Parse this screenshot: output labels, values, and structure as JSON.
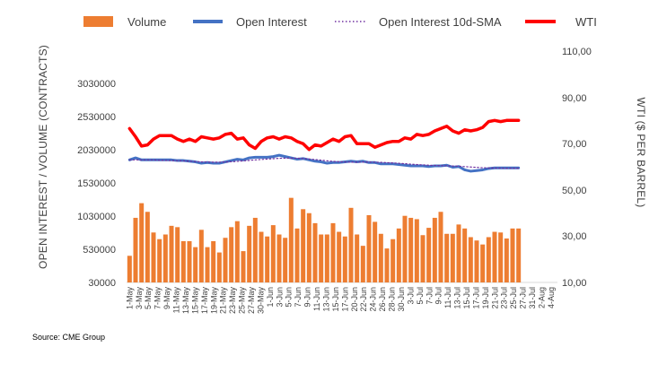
{
  "source": "Source: CME Group",
  "chart_data": {
    "type": "bar",
    "y_left_label": "OPEN INTEREST / VOLUME (CONTRACTS)",
    "y_right_label": "WTI ($ PER BARREL)",
    "y_left_ticks": [
      "30000",
      "530000",
      "1030000",
      "1530000",
      "2030000",
      "2530000",
      "3030000"
    ],
    "y_left_ylim": [
      30000,
      3530000
    ],
    "y_right_ticks": [
      "10,00",
      "30,00",
      "50,00",
      "70,00",
      "90,00",
      "110,00"
    ],
    "y_right_ylim": [
      10,
      110
    ],
    "x_tick_labels": [
      "1-May",
      "3-May",
      "5-May",
      "7-May",
      "9-May",
      "11-May",
      "13-May",
      "15-May",
      "17-May",
      "19-May",
      "21-May",
      "23-May",
      "25-May",
      "27-May",
      "30-May",
      "1-Jun",
      "3-Jun",
      "5-Jun",
      "7-Jun",
      "9-Jun",
      "11-Jun",
      "13-Jun",
      "15-Jun",
      "17-Jun",
      "20-Jun",
      "22-Jun",
      "24-Jun",
      "26-Jun",
      "28-Jun",
      "30-Jun",
      "3-Jul",
      "5-Jul",
      "7-Jul",
      "9-Jul",
      "11-Jul",
      "13-Jul",
      "15-Jul",
      "17-Jul",
      "19-Jul",
      "21-Jul",
      "23-Jul",
      "25-Jul",
      "27-Jul",
      "31-Jul",
      "2-Aug",
      "4-Aug"
    ],
    "n_points": 66,
    "n_slots": 72,
    "series": [
      {
        "name": "Volume",
        "kind": "bar",
        "color": "#ed7d31",
        "axis": "left",
        "values": [
          430000,
          1000000,
          1220000,
          1090000,
          780000,
          680000,
          750000,
          880000,
          860000,
          650000,
          650000,
          560000,
          820000,
          560000,
          650000,
          480000,
          700000,
          860000,
          950000,
          500000,
          880000,
          1000000,
          790000,
          720000,
          890000,
          750000,
          700000,
          1300000,
          840000,
          1130000,
          1070000,
          920000,
          750000,
          750000,
          920000,
          790000,
          720000,
          1150000,
          750000,
          580000,
          1040000,
          940000,
          760000,
          540000,
          680000,
          840000,
          1030000,
          1000000,
          980000,
          740000,
          850000,
          1000000,
          1090000,
          760000,
          760000,
          900000,
          840000,
          710000,
          660000,
          600000,
          710000,
          790000,
          780000,
          690000,
          840000,
          840000
        ]
      },
      {
        "name": "Open Interest",
        "kind": "line",
        "color": "#4472c4",
        "axis": "left",
        "values": [
          1870000,
          1900000,
          1870000,
          1870000,
          1870000,
          1870000,
          1870000,
          1870000,
          1860000,
          1860000,
          1850000,
          1840000,
          1820000,
          1830000,
          1820000,
          1820000,
          1840000,
          1860000,
          1880000,
          1870000,
          1900000,
          1910000,
          1910000,
          1910000,
          1920000,
          1940000,
          1920000,
          1900000,
          1880000,
          1890000,
          1870000,
          1850000,
          1840000,
          1820000,
          1830000,
          1830000,
          1840000,
          1850000,
          1840000,
          1850000,
          1830000,
          1830000,
          1810000,
          1810000,
          1810000,
          1800000,
          1790000,
          1780000,
          1780000,
          1780000,
          1770000,
          1780000,
          1780000,
          1790000,
          1760000,
          1770000,
          1720000,
          1700000,
          1710000,
          1720000,
          1740000,
          1750000,
          1750000,
          1750000,
          1750000,
          1750000
        ]
      },
      {
        "name": "Open Interest 10d-SMA",
        "kind": "dotted-line",
        "color": "#7030a0",
        "axis": "left",
        "values": [
          1870000,
          1870000,
          1870000,
          1870000,
          1870000,
          1865000,
          1862000,
          1860000,
          1858000,
          1855000,
          1850000,
          1845000,
          1840000,
          1838000,
          1836000,
          1836000,
          1838000,
          1842000,
          1848000,
          1855000,
          1862000,
          1870000,
          1876000,
          1882000,
          1888000,
          1893000,
          1896000,
          1897000,
          1895000,
          1890000,
          1883000,
          1875000,
          1866000,
          1856000,
          1848000,
          1842000,
          1838000,
          1836000,
          1836000,
          1837000,
          1837000,
          1836000,
          1833000,
          1829000,
          1824000,
          1819000,
          1813000,
          1806000,
          1800000,
          1795000,
          1790000,
          1786000,
          1783000,
          1781000,
          1778000,
          1775000,
          1769000,
          1763000,
          1757000,
          1752000,
          1749000,
          1747000,
          1746000,
          1745000,
          1745000,
          1745000
        ]
      },
      {
        "name": "WTI",
        "kind": "line",
        "color": "#ff0000",
        "axis": "right",
        "values": [
          76.0,
          72.5,
          68.5,
          69.0,
          71.5,
          73.0,
          73.0,
          73.0,
          71.5,
          70.5,
          71.5,
          70.5,
          72.5,
          72.0,
          71.5,
          72.0,
          73.5,
          74.0,
          71.5,
          72.0,
          69.0,
          67.5,
          70.5,
          72.0,
          72.5,
          71.5,
          72.5,
          72.0,
          70.5,
          69.5,
          67.0,
          69.0,
          68.5,
          70.0,
          71.5,
          70.5,
          72.5,
          73.0,
          69.5,
          69.5,
          69.5,
          68.0,
          69.0,
          70.0,
          70.5,
          70.5,
          72.0,
          71.5,
          73.5,
          73.0,
          73.5,
          75.0,
          76.0,
          77.0,
          75.0,
          74.0,
          75.5,
          75.0,
          75.5,
          76.5,
          79.0,
          79.5,
          79.0,
          79.5,
          79.5,
          79.5
        ]
      }
    ],
    "legend": "top"
  }
}
